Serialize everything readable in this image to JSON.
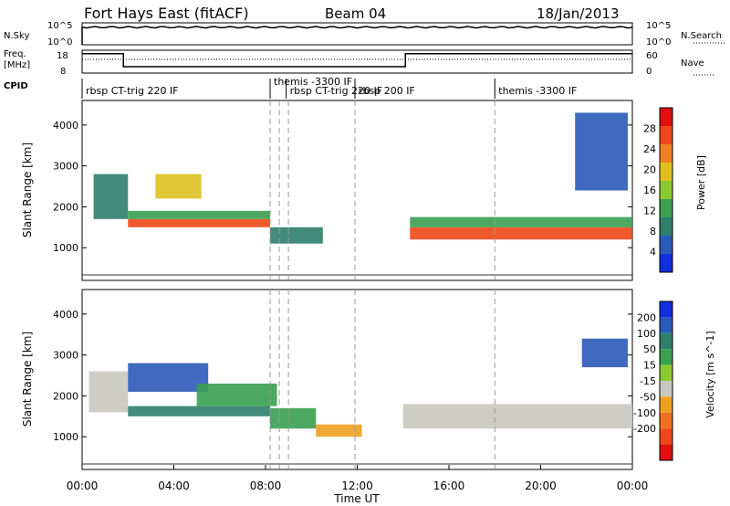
{
  "header": {
    "station": "Fort Hays East (fitACF)",
    "beam": "Beam 04",
    "date": "18/Jan/2013"
  },
  "noise_panel": {
    "left_label": "N.Sky",
    "left_ticks": [
      "10^5",
      "10^0"
    ],
    "right_label": "N.Search",
    "right_ticks": [
      "10^5",
      "10^0"
    ],
    "sky_level": 0.8
  },
  "freq_panel": {
    "left_label_line1": "Freq.",
    "left_label_line2": "[MHz]",
    "left_ticks": [
      "18",
      "8"
    ],
    "right_label": "Nave",
    "right_ticks": [
      "60",
      "0"
    ],
    "freq_steps": [
      [
        0,
        0.85
      ],
      [
        1.8,
        0.28
      ],
      [
        14.1,
        0.28
      ],
      [
        14.1,
        0.85
      ],
      [
        24,
        0.85
      ]
    ],
    "nave_level": 0.6
  },
  "cpid": {
    "label": "CPID",
    "items": [
      {
        "t": 0.0,
        "text": "rbsp CT-trig 220 IF"
      },
      {
        "t": 8.2,
        "text": "themis -3300 IF"
      },
      {
        "t": 8.9,
        "text": "rbsp CT-trig 220 IF"
      },
      {
        "t": 11.9,
        "text": "rbsp 200 IF"
      },
      {
        "t": 18.0,
        "text": "themis -3300 IF"
      }
    ],
    "markers": [
      8.2,
      8.6,
      9.0,
      11.9,
      18.0
    ]
  },
  "chart_data": [
    {
      "type": "heatmap",
      "title": "Power",
      "xlabel": "",
      "ylabel": "Slant Range [km]",
      "xlim": [
        0,
        24
      ],
      "ylim": [
        200,
        4600
      ],
      "yticks": [
        1000,
        2000,
        3000,
        4000
      ],
      "colorbar": {
        "label": "Power [dB]",
        "ticks": [
          4,
          8,
          12,
          16,
          20,
          24,
          28
        ],
        "range": [
          0,
          32
        ],
        "colors": [
          "#1030e0",
          "#2a5ab8",
          "#2e7e6a",
          "#3aa050",
          "#8cc830",
          "#e0c020",
          "#f08020",
          "#f04818",
          "#e01010"
        ]
      },
      "bands": [
        {
          "t0": 2.0,
          "t1": 8.2,
          "r0": 1500,
          "r1": 1700,
          "value": 28
        },
        {
          "t0": 2.0,
          "t1": 8.2,
          "r0": 1700,
          "r1": 1900,
          "value": 12
        },
        {
          "t0": 8.2,
          "t1": 10.5,
          "r0": 1100,
          "r1": 1500,
          "value": 10
        },
        {
          "t0": 14.3,
          "t1": 24.0,
          "r0": 1200,
          "r1": 1500,
          "value": 26
        },
        {
          "t0": 14.3,
          "t1": 24.0,
          "r0": 1500,
          "r1": 1750,
          "value": 14
        },
        {
          "t0": 0.5,
          "t1": 2.0,
          "r0": 1700,
          "r1": 2800,
          "value": 8
        },
        {
          "t0": 3.2,
          "t1": 5.2,
          "r0": 2200,
          "r1": 2800,
          "value": 18
        },
        {
          "t0": 21.5,
          "t1": 23.8,
          "r0": 2400,
          "r1": 4300,
          "value": 6
        }
      ]
    },
    {
      "type": "heatmap",
      "title": "Velocity",
      "xlabel": "Time UT",
      "ylabel": "Slant Range [km]",
      "xlim": [
        0,
        24
      ],
      "ylim": [
        200,
        4600
      ],
      "xticks": [
        "00:00",
        "04:00",
        "08:00",
        "12:00",
        "16:00",
        "20:00",
        "00:00"
      ],
      "yticks": [
        1000,
        2000,
        3000,
        4000
      ],
      "colorbar": {
        "label": "Velocity [m s^-1]",
        "ticks": [
          "200",
          "100",
          "50",
          "15",
          "-15",
          "-50",
          "-100",
          "-200"
        ],
        "colors": [
          "#1030e0",
          "#2a5ab8",
          "#2e7e6a",
          "#3aa050",
          "#8cc830",
          "#c8c8c0",
          "#f0a020",
          "#f07020",
          "#f04818",
          "#e01010"
        ]
      },
      "bands": [
        {
          "t0": 0.3,
          "t1": 2.0,
          "r0": 1600,
          "r1": 2600,
          "value": "-15"
        },
        {
          "t0": 2.0,
          "t1": 5.5,
          "r0": 2100,
          "r1": 2800,
          "value": "200"
        },
        {
          "t0": 2.0,
          "t1": 8.2,
          "r0": 1500,
          "r1": 1750,
          "value": "100"
        },
        {
          "t0": 5.0,
          "t1": 8.5,
          "r0": 1750,
          "r1": 2300,
          "value": "50"
        },
        {
          "t0": 8.2,
          "t1": 10.2,
          "r0": 1200,
          "r1": 1700,
          "value": "50"
        },
        {
          "t0": 10.2,
          "t1": 12.2,
          "r0": 1000,
          "r1": 1300,
          "value": "-50"
        },
        {
          "t0": 14.0,
          "t1": 24.0,
          "r0": 1200,
          "r1": 1800,
          "value": "-15"
        },
        {
          "t0": 21.8,
          "t1": 23.8,
          "r0": 2700,
          "r1": 3400,
          "value": "200"
        }
      ]
    }
  ]
}
